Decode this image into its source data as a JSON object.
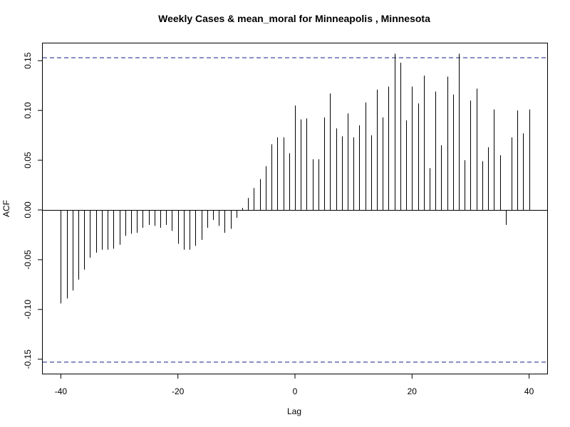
{
  "chart_data": {
    "type": "bar",
    "title": "Weekly Cases & mean_moral for Minneapolis , Minnesota",
    "xlabel": "Lag",
    "ylabel": "ACF",
    "xlim": [
      -40,
      40
    ],
    "ylim": [
      -0.16,
      0.16
    ],
    "x_ticks": [
      -40,
      -20,
      0,
      20,
      40
    ],
    "x_tick_labels": [
      "-40",
      "-20",
      "0",
      "20",
      "40"
    ],
    "y_ticks": [
      -0.15,
      -0.1,
      -0.05,
      0.0,
      0.05,
      0.1,
      0.15
    ],
    "y_tick_labels": [
      "-0.15",
      "-0.10",
      "-0.05",
      "0.00",
      "0.05",
      "0.10",
      "0.15"
    ],
    "confidence_bounds": [
      0.153,
      -0.153
    ],
    "lags": [
      -40,
      -39,
      -38,
      -37,
      -36,
      -35,
      -34,
      -33,
      -32,
      -31,
      -30,
      -29,
      -28,
      -27,
      -26,
      -25,
      -24,
      -23,
      -22,
      -21,
      -20,
      -19,
      -18,
      -17,
      -16,
      -15,
      -14,
      -13,
      -12,
      -11,
      -10,
      -9,
      -8,
      -7,
      -6,
      -5,
      -4,
      -3,
      -2,
      -1,
      0,
      1,
      2,
      3,
      4,
      5,
      6,
      7,
      8,
      9,
      10,
      11,
      12,
      13,
      14,
      15,
      16,
      17,
      18,
      19,
      20,
      21,
      22,
      23,
      24,
      25,
      26,
      27,
      28,
      29,
      30,
      31,
      32,
      33,
      34,
      35,
      36,
      37,
      38,
      39,
      40
    ],
    "acf": [
      -0.094,
      -0.089,
      -0.081,
      -0.07,
      -0.06,
      -0.048,
      -0.043,
      -0.04,
      -0.04,
      -0.039,
      -0.035,
      -0.026,
      -0.024,
      -0.023,
      -0.018,
      -0.015,
      -0.016,
      -0.018,
      -0.015,
      -0.021,
      -0.034,
      -0.04,
      -0.04,
      -0.036,
      -0.03,
      -0.018,
      -0.01,
      -0.016,
      -0.023,
      -0.019,
      -0.008,
      0.002,
      0.012,
      0.022,
      0.031,
      0.044,
      0.066,
      0.073,
      0.073,
      0.057,
      0.105,
      0.091,
      0.092,
      0.051,
      0.051,
      0.093,
      0.117,
      0.082,
      0.074,
      0.097,
      0.073,
      0.085,
      0.108,
      0.075,
      0.121,
      0.093,
      0.124,
      0.157,
      0.148,
      0.09,
      0.124,
      0.107,
      0.135,
      0.042,
      0.119,
      0.065,
      0.134,
      0.116,
      0.157,
      0.05,
      0.11,
      0.122,
      0.049,
      0.063,
      0.101,
      0.055,
      -0.015,
      0.073,
      0.1,
      0.077,
      0.101
    ]
  }
}
